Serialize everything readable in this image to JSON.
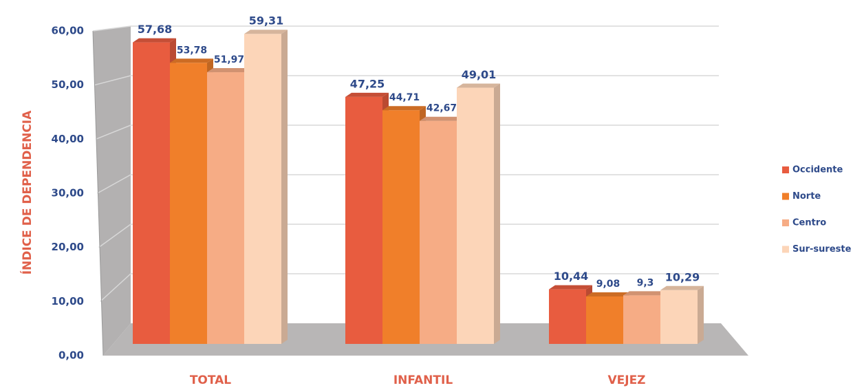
{
  "chart_data": {
    "type": "bar3d",
    "y_label": "ÍNDICE DE DEPENDENCIA",
    "categories": [
      "TOTAL",
      "INFANTIL",
      "VEJEZ"
    ],
    "series": [
      {
        "name": "Occidente",
        "color": "#e85c3f",
        "values": [
          57.68,
          47.25,
          10.44
        ],
        "value_labels": [
          "57,68",
          "47,25",
          "10,44"
        ]
      },
      {
        "name": "Norte",
        "color": "#f07f2a",
        "values": [
          53.78,
          44.71,
          9.08
        ],
        "value_labels": [
          "53,78",
          "44,71",
          "9,08"
        ]
      },
      {
        "name": "Centro",
        "color": "#f6ac85",
        "values": [
          51.97,
          42.67,
          9.3
        ],
        "value_labels": [
          "51,97",
          "42,67",
          "9,3"
        ]
      },
      {
        "name": "Sur-sureste",
        "color": "#fcd5b8",
        "values": [
          59.31,
          49.01,
          10.29
        ],
        "value_labels": [
          "59,31",
          "49,01",
          "10,29"
        ]
      }
    ],
    "ylim": [
      0,
      60
    ],
    "yticks": [
      {
        "value": 0,
        "label": "0,00"
      },
      {
        "value": 10,
        "label": "10,00"
      },
      {
        "value": 20,
        "label": "20,00"
      },
      {
        "value": 30,
        "label": "30,00"
      },
      {
        "value": 40,
        "label": "40,00"
      },
      {
        "value": 50,
        "label": "50,00"
      },
      {
        "value": 60,
        "label": "60,00"
      }
    ],
    "grid": true,
    "legend": "right"
  }
}
